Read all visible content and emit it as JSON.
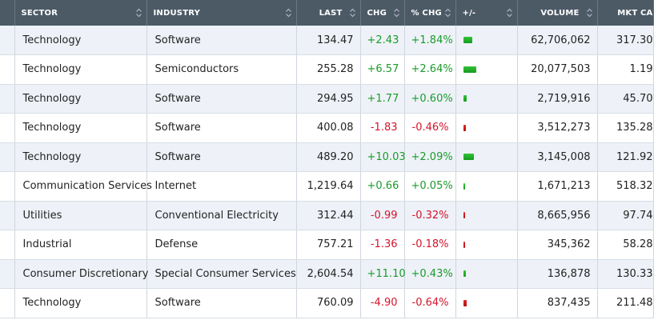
{
  "table": {
    "headers": {
      "sector": "SECTOR",
      "industry": "INDUSTRY",
      "last": "LAST",
      "chg": "CHG",
      "pchg": "% CHG",
      "bar": "+/-",
      "volume": "VOLUME",
      "mktcap": "MKT CA"
    },
    "rows": [
      {
        "sector": "Technology",
        "industry": "Software",
        "last": "134.47",
        "chg": "+2.43",
        "pchg": "+1.84%",
        "volume": "62,706,062",
        "mktcap": "317.30"
      },
      {
        "sector": "Technology",
        "industry": "Semiconductors",
        "last": "255.28",
        "chg": "+6.57",
        "pchg": "+2.64%",
        "volume": "20,077,503",
        "mktcap": "1.19"
      },
      {
        "sector": "Technology",
        "industry": "Software",
        "last": "294.95",
        "chg": "+1.77",
        "pchg": "+0.60%",
        "volume": "2,719,916",
        "mktcap": "45.70"
      },
      {
        "sector": "Technology",
        "industry": "Software",
        "last": "400.08",
        "chg": "-1.83",
        "pchg": "-0.46%",
        "volume": "3,512,273",
        "mktcap": "135.28"
      },
      {
        "sector": "Technology",
        "industry": "Software",
        "last": "489.20",
        "chg": "+10.03",
        "pchg": "+2.09%",
        "volume": "3,145,008",
        "mktcap": "121.92"
      },
      {
        "sector": "Communication Services",
        "industry": "Internet",
        "last": "1,219.64",
        "chg": "+0.66",
        "pchg": "+0.05%",
        "volume": "1,671,213",
        "mktcap": "518.32"
      },
      {
        "sector": "Utilities",
        "industry": "Conventional Electricity",
        "last": "312.44",
        "chg": "-0.99",
        "pchg": "-0.32%",
        "volume": "8,665,956",
        "mktcap": "97.74"
      },
      {
        "sector": "Industrial",
        "industry": "Defense",
        "last": "757.21",
        "chg": "-1.36",
        "pchg": "-0.18%",
        "volume": "345,362",
        "mktcap": "58.28"
      },
      {
        "sector": "Consumer Discretionary",
        "industry": "Special Consumer Services",
        "last": "2,604.54",
        "chg": "+11.10",
        "pchg": "+0.43%",
        "volume": "136,878",
        "mktcap": "130.33"
      },
      {
        "sector": "Technology",
        "industry": "Software",
        "last": "760.09",
        "chg": "-4.90",
        "pchg": "-0.64%",
        "volume": "837,435",
        "mktcap": "211.48"
      }
    ]
  },
  "colors": {
    "header_bg": "#4c5a66",
    "positive": "#1a9b2a",
    "negative": "#d4132b",
    "zebra": "#eef2f8"
  }
}
